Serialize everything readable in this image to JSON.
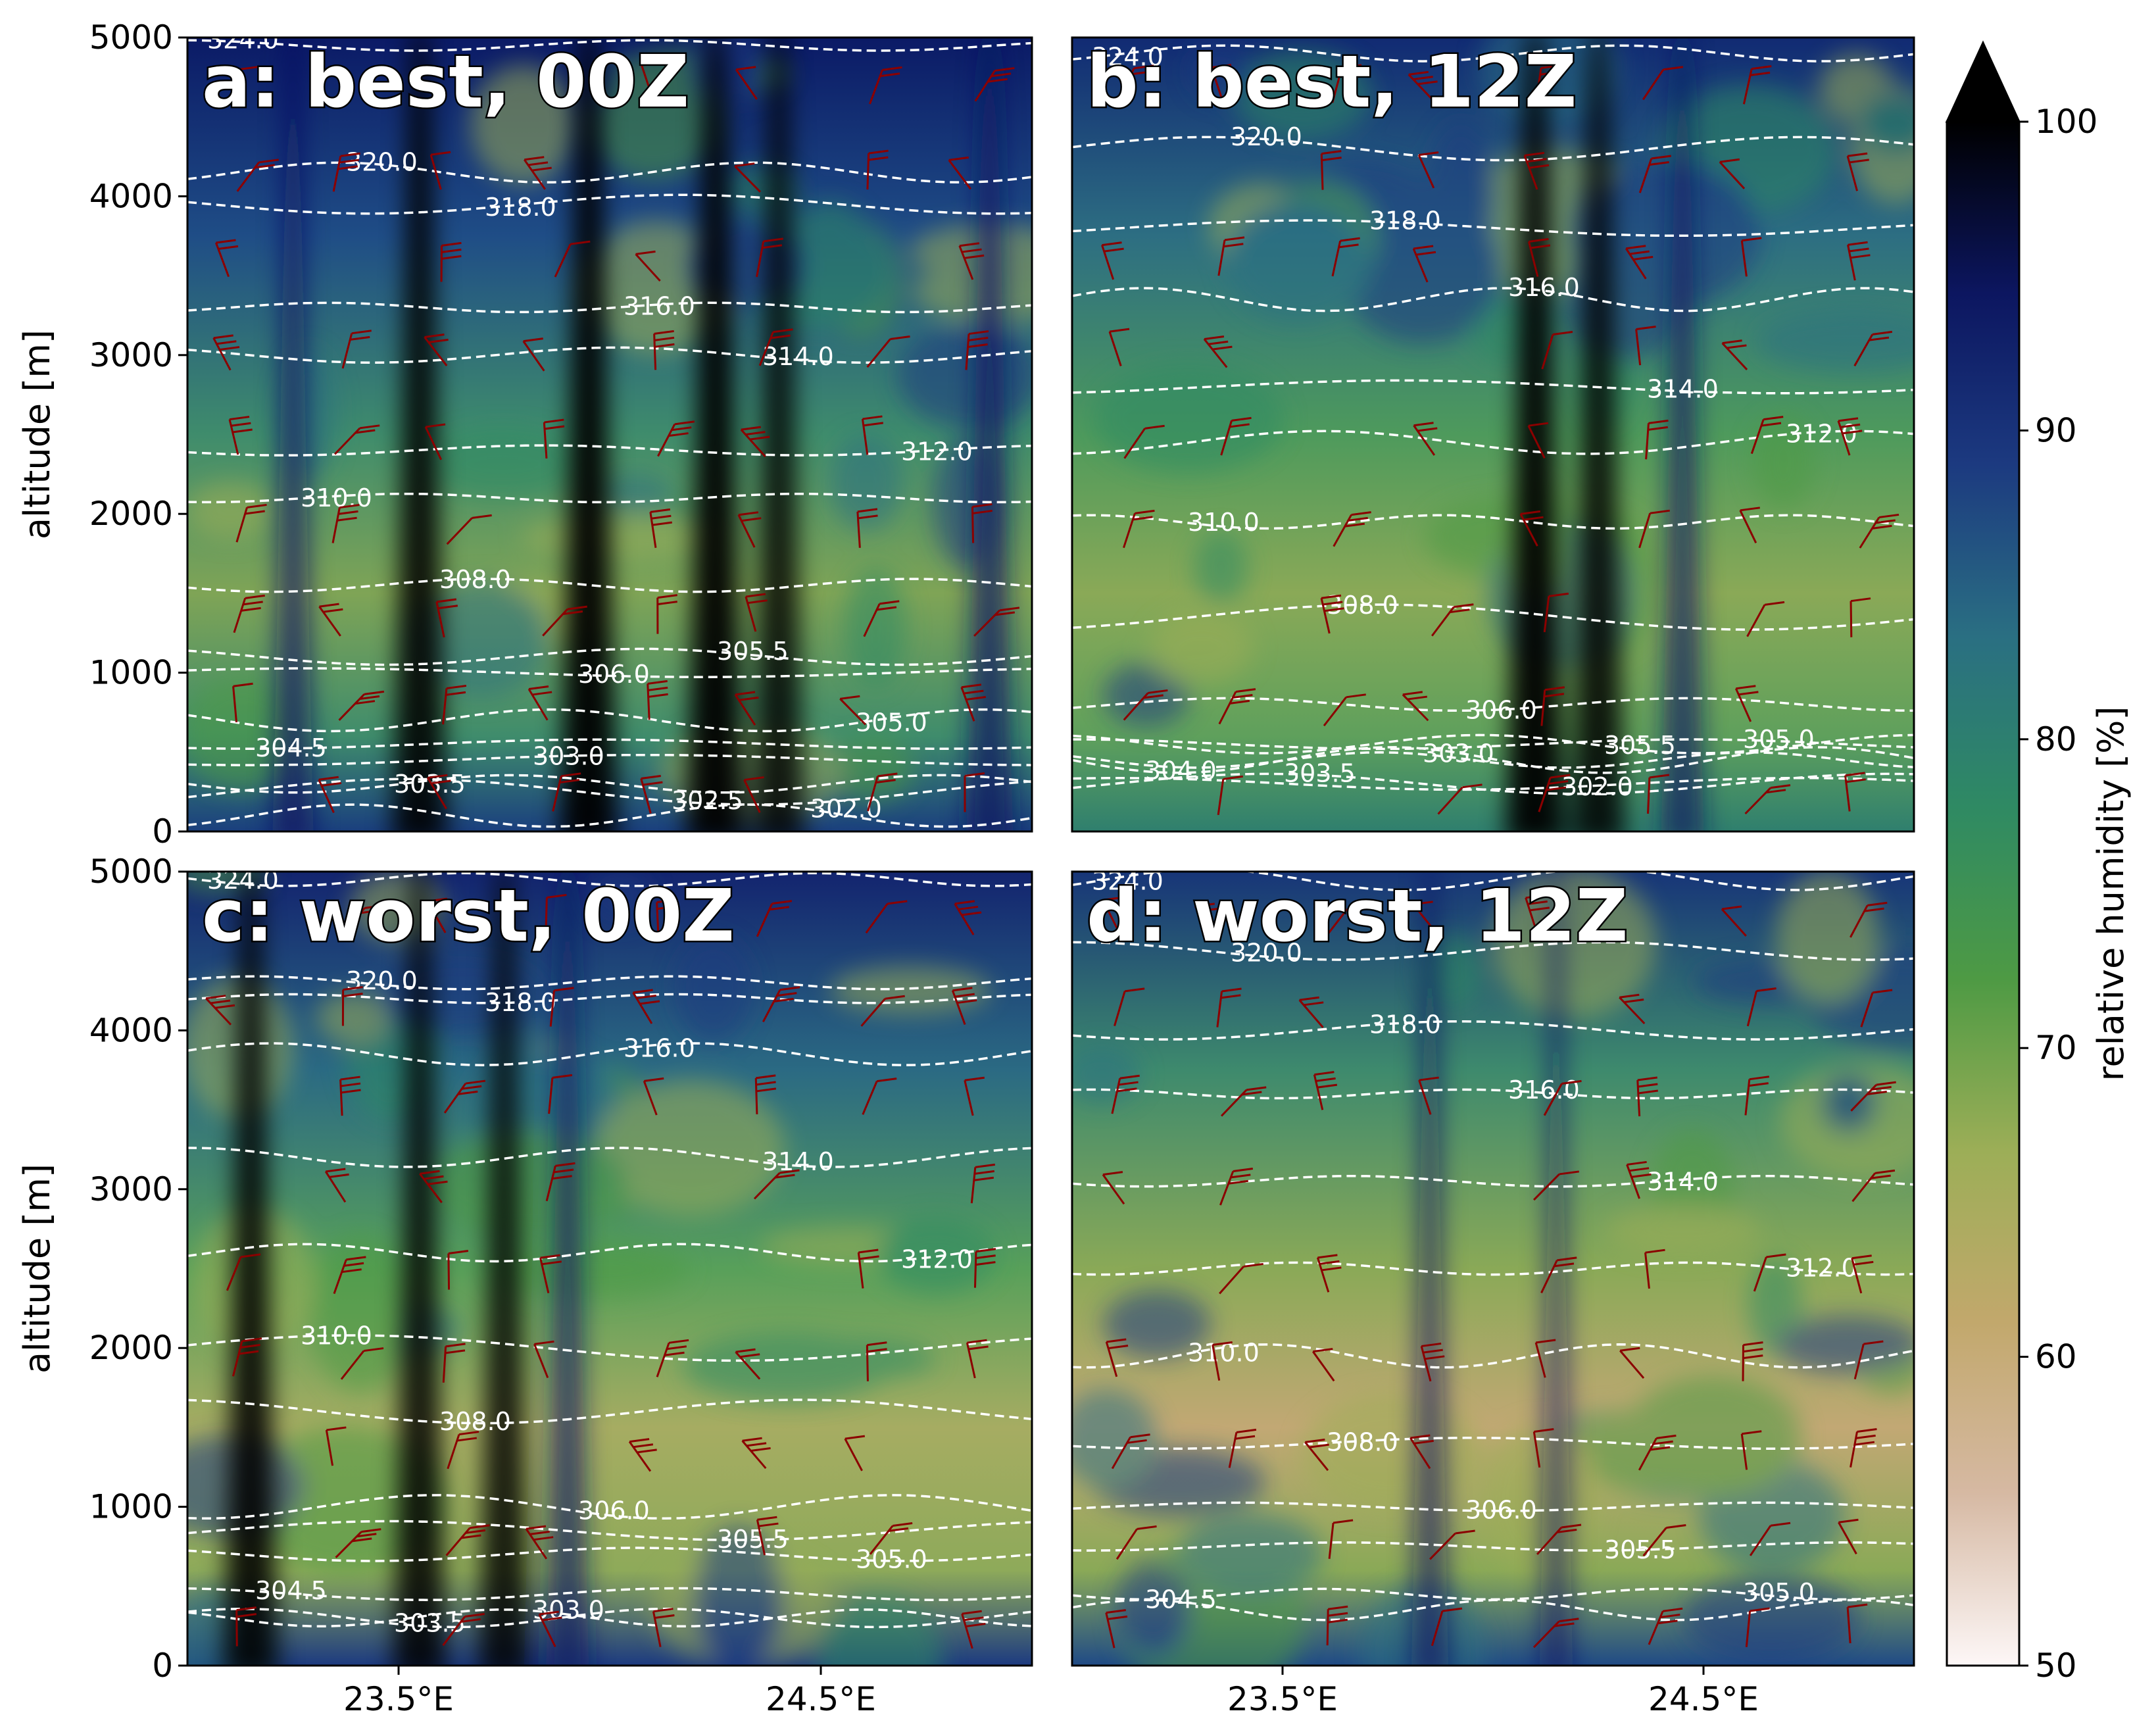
{
  "figure": {
    "panels": [
      {
        "id": "a",
        "title": "a: best, 00Z",
        "ylabel": "altitude [m]",
        "show_y_ticks": true,
        "show_x_ticks": false
      },
      {
        "id": "b",
        "title": "b: best, 12Z",
        "ylabel": "",
        "show_y_ticks": false,
        "show_x_ticks": false
      },
      {
        "id": "c",
        "title": "c: worst, 00Z",
        "ylabel": "altitude [m]",
        "show_y_ticks": true,
        "show_x_ticks": true
      },
      {
        "id": "d",
        "title": "d: worst, 12Z",
        "ylabel": "",
        "show_y_ticks": false,
        "show_x_ticks": true
      }
    ],
    "y_ticks": [
      "0",
      "1000",
      "2000",
      "3000",
      "4000",
      "5000"
    ],
    "x_ticks": [
      "23.5°E",
      "24.5°E"
    ],
    "colorbar": {
      "label": "relative humidity [%]",
      "ticks": [
        "50",
        "60",
        "70",
        "80",
        "90",
        "100"
      ],
      "extend": "max"
    }
  },
  "chart_data": [
    {
      "type": "heatmap",
      "panel": "a",
      "title": "a: best, 00Z",
      "ylabel": "altitude [m]",
      "xlim": [
        23.0,
        25.0
      ],
      "ylim": [
        0,
        5000
      ],
      "x_ticks": [
        23.5,
        24.5
      ],
      "colorbar_range": [
        50,
        100
      ],
      "moist_columns": [
        {
          "x": 23.25,
          "strength": 0.55
        },
        {
          "x": 23.55,
          "strength": 0.9
        },
        {
          "x": 23.95,
          "strength": 1.0
        },
        {
          "x": 24.25,
          "strength": 1.0
        },
        {
          "x": 24.4,
          "strength": 0.8
        },
        {
          "x": 24.9,
          "strength": 0.7
        }
      ],
      "theta_contours": [
        {
          "value": 324.0,
          "label": "324.0",
          "altitude": 4950
        },
        {
          "value": 320.0,
          "label": "320.0",
          "altitude": 4150
        },
        {
          "value": 318.0,
          "label": "318.0",
          "altitude": 3950
        },
        {
          "value": 316.0,
          "label": "316.0",
          "altitude": 3300
        },
        {
          "value": 314.0,
          "label": "314.0",
          "altitude": 3000
        },
        {
          "value": 312.0,
          "label": "312.0",
          "altitude": 2400
        },
        {
          "value": 310.0,
          "label": "310.0",
          "altitude": 2100
        },
        {
          "value": 308.0,
          "label": "308.0",
          "altitude": 1550
        },
        {
          "value": 306.0,
          "label": "306.0",
          "altitude": 1000
        },
        {
          "value": 305.5,
          "label": "305.5",
          "altitude": 1100
        },
        {
          "value": 305.0,
          "label": "305.0",
          "altitude": 700
        },
        {
          "value": 304.5,
          "label": "304.5",
          "altitude": 550
        },
        {
          "value": 303.5,
          "label": "303.5",
          "altitude": 300
        },
        {
          "value": 303.0,
          "label": "303.0",
          "altitude": 450
        },
        {
          "value": 302.5,
          "label": "302.5",
          "altitude": 250
        },
        {
          "value": 302.0,
          "label": "302.0",
          "altitude": 100
        }
      ]
    },
    {
      "type": "heatmap",
      "panel": "b",
      "title": "b: best, 12Z",
      "xlim": [
        23.0,
        25.0
      ],
      "ylim": [
        0,
        5000
      ],
      "x_ticks": [
        23.5,
        24.5
      ],
      "colorbar_range": [
        50,
        100
      ],
      "moist_columns": [
        {
          "x": 24.1,
          "strength": 1.0
        },
        {
          "x": 24.25,
          "strength": 0.85
        },
        {
          "x": 24.45,
          "strength": 0.6
        }
      ],
      "theta_contours": [
        {
          "value": 324.0,
          "label": "324.0",
          "altitude": 4900
        },
        {
          "value": 320.0,
          "label": "320.0",
          "altitude": 4300
        },
        {
          "value": 318.0,
          "label": "318.0",
          "altitude": 3800
        },
        {
          "value": 316.0,
          "label": "316.0",
          "altitude": 3350
        },
        {
          "value": 314.0,
          "label": "314.0",
          "altitude": 2800
        },
        {
          "value": 312.0,
          "label": "312.0",
          "altitude": 2450
        },
        {
          "value": 310.0,
          "label": "310.0",
          "altitude": 1950
        },
        {
          "value": 308.0,
          "label": "308.0",
          "altitude": 1350
        },
        {
          "value": 306.0,
          "label": "306.0",
          "altitude": 800
        },
        {
          "value": 305.5,
          "label": "305.5",
          "altitude": 550
        },
        {
          "value": 305.0,
          "label": "305.0",
          "altitude": 550
        },
        {
          "value": 304.0,
          "label": "304.0",
          "altitude": 450
        },
        {
          "value": 303.5,
          "label": "303.5",
          "altitude": 300
        },
        {
          "value": 303.0,
          "label": "303.0",
          "altitude": 450
        },
        {
          "value": 302.0,
          "label": "302.0",
          "altitude": 300
        }
      ]
    },
    {
      "type": "heatmap",
      "panel": "c",
      "title": "c: worst, 00Z",
      "ylabel": "altitude [m]",
      "xlim": [
        23.0,
        25.0
      ],
      "ylim": [
        0,
        5000
      ],
      "x_ticks": [
        23.5,
        24.5
      ],
      "colorbar_range": [
        50,
        100
      ],
      "moist_columns": [
        {
          "x": 23.15,
          "strength": 0.9
        },
        {
          "x": 23.55,
          "strength": 0.85
        },
        {
          "x": 23.75,
          "strength": 0.8
        },
        {
          "x": 23.9,
          "strength": 0.6
        }
      ],
      "theta_contours": [
        {
          "value": 324.0,
          "label": "324.0",
          "altitude": 4950
        },
        {
          "value": 320.0,
          "label": "320.0",
          "altitude": 4300
        },
        {
          "value": 318.0,
          "label": "318.0",
          "altitude": 4200
        },
        {
          "value": 316.0,
          "label": "316.0",
          "altitude": 3850
        },
        {
          "value": 314.0,
          "label": "314.0",
          "altitude": 3200
        },
        {
          "value": 312.0,
          "label": "312.0",
          "altitude": 2600
        },
        {
          "value": 310.0,
          "label": "310.0",
          "altitude": 2000
        },
        {
          "value": 308.0,
          "label": "308.0",
          "altitude": 1600
        },
        {
          "value": 306.0,
          "label": "306.0",
          "altitude": 1000
        },
        {
          "value": 305.5,
          "label": "305.5",
          "altitude": 850
        },
        {
          "value": 305.0,
          "label": "305.0",
          "altitude": 700
        },
        {
          "value": 304.5,
          "label": "304.5",
          "altitude": 450
        },
        {
          "value": 303.5,
          "label": "303.5",
          "altitude": 300
        },
        {
          "value": 303.0,
          "label": "303.0",
          "altitude": 300
        }
      ]
    },
    {
      "type": "heatmap",
      "panel": "d",
      "title": "d: worst, 12Z",
      "xlim": [
        23.0,
        25.0
      ],
      "ylim": [
        0,
        5000
      ],
      "x_ticks": [
        23.5,
        24.5
      ],
      "colorbar_range": [
        50,
        100
      ],
      "moist_columns": [
        {
          "x": 23.85,
          "strength": 0.45
        },
        {
          "x": 24.15,
          "strength": 0.35
        }
      ],
      "theta_contours": [
        {
          "value": 324.0,
          "label": "324.0",
          "altitude": 4950
        },
        {
          "value": 320.0,
          "label": "320.0",
          "altitude": 4500
        },
        {
          "value": 318.0,
          "label": "318.0",
          "altitude": 4000
        },
        {
          "value": 316.0,
          "label": "316.0",
          "altitude": 3600
        },
        {
          "value": 314.0,
          "label": "314.0",
          "altitude": 3050
        },
        {
          "value": 312.0,
          "label": "312.0",
          "altitude": 2500
        },
        {
          "value": 310.0,
          "label": "310.0",
          "altitude": 1950
        },
        {
          "value": 308.0,
          "label": "308.0",
          "altitude": 1400
        },
        {
          "value": 306.0,
          "label": "306.0",
          "altitude": 1000
        },
        {
          "value": 305.5,
          "label": "305.5",
          "altitude": 750
        },
        {
          "value": 305.0,
          "label": "305.0",
          "altitude": 450
        },
        {
          "value": 304.5,
          "label": "304.5",
          "altitude": 350
        }
      ]
    }
  ],
  "colors": {
    "contour": "#ffffff",
    "wind_barb": "#8b0000",
    "colormap_gist_earth_r": [
      "#fdf7f7",
      "#d6b9a3",
      "#c2a86c",
      "#9cae57",
      "#4e9a44",
      "#2f8a63",
      "#2a6f82",
      "#1c3a80",
      "#0c1660",
      "#000000"
    ]
  }
}
